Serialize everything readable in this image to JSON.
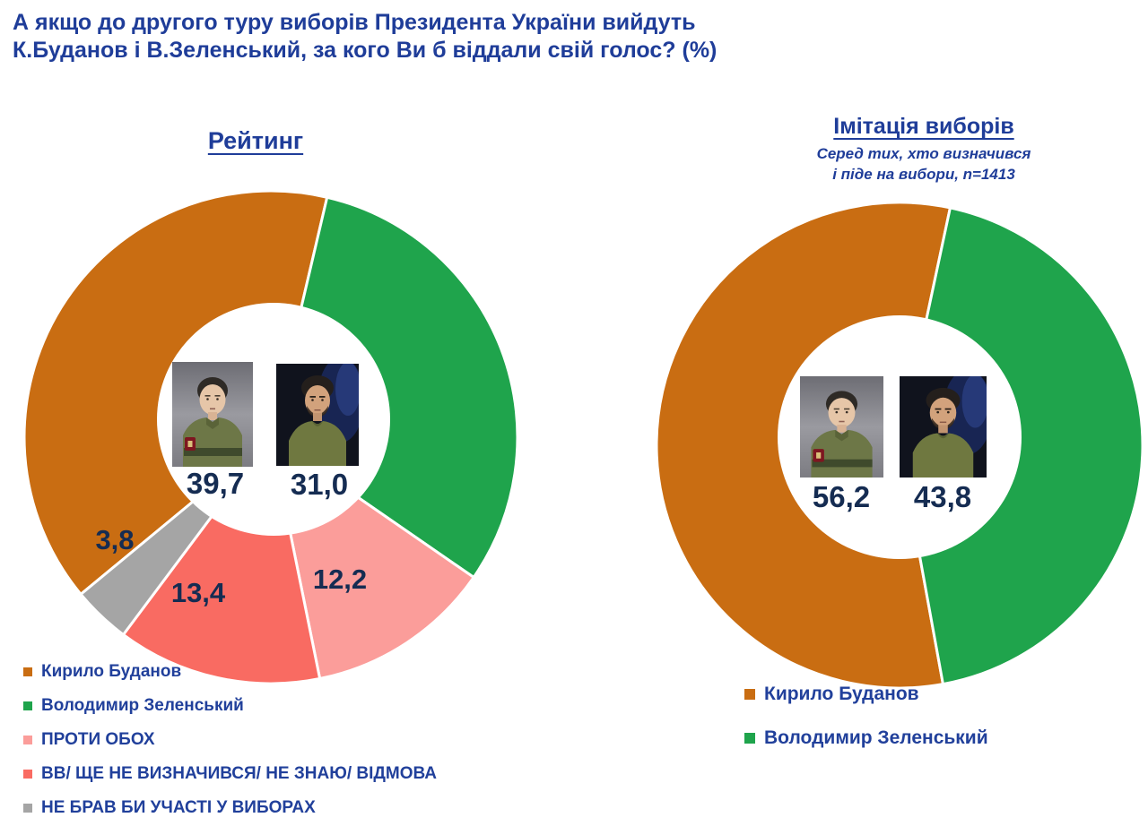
{
  "title": {
    "line1": "А якщо до другого туру виборів Президента України вийдуть",
    "line2": "К.Буданов і В.Зеленський, за кого Ви б віддали свій голос? (%)"
  },
  "icons": {
    "budanov_portrait": "budanov-photo",
    "zelensky_portrait": "zelensky-photo"
  },
  "colors": {
    "title_blue": "#1F3D99",
    "legend_blue": "#21409B",
    "value_navy": "#152C52",
    "budanov_orange": "#C96D12",
    "zelensky_green": "#1FA44C",
    "against_pink": "#FB9D9A",
    "undecided_salmon": "#F96B62",
    "abstain_gray": "#A5A5A5"
  },
  "chart_data": [
    {
      "type": "pie",
      "subtype": "donut",
      "title": "Рейтинг",
      "legend_position": "bottom-left",
      "direction": "clockwise",
      "start_angle_deg": 230.4,
      "slices": [
        {
          "label": "Кирило Буданов",
          "value": 39.7,
          "value_label": "39,7",
          "color": "#C96D12"
        },
        {
          "label": "Володимир Зеленський",
          "value": 31.0,
          "value_label": "31,0",
          "color": "#1FA44C"
        },
        {
          "label": "ПРОТИ ОБОХ",
          "value": 12.2,
          "value_label": "12,2",
          "color": "#FB9D9A"
        },
        {
          "label": "ВВ/ ЩЕ НЕ ВИЗНАЧИВСЯ/ НЕ ЗНАЮ/ ВІДМОВА",
          "value": 13.4,
          "value_label": "13,4",
          "color": "#F96B62"
        },
        {
          "label": "НЕ БРАВ БИ УЧАСТІ У ВИБОРАХ",
          "value": 3.8,
          "value_label": "3,8",
          "color": "#A5A5A5"
        }
      ]
    },
    {
      "type": "pie",
      "subtype": "donut",
      "title": "Імітація виборів",
      "subtitle": [
        "Серед тих, хто визначився",
        "і піде на вибори, n=1413"
      ],
      "legend_position": "bottom",
      "direction": "clockwise",
      "start_angle_deg": 169.7,
      "slices": [
        {
          "label": "Кирило Буданов",
          "value": 56.2,
          "value_label": "56,2",
          "color": "#C96D12"
        },
        {
          "label": "Володимир Зеленський",
          "value": 43.8,
          "value_label": "43,8",
          "color": "#1FA44C"
        }
      ]
    }
  ]
}
